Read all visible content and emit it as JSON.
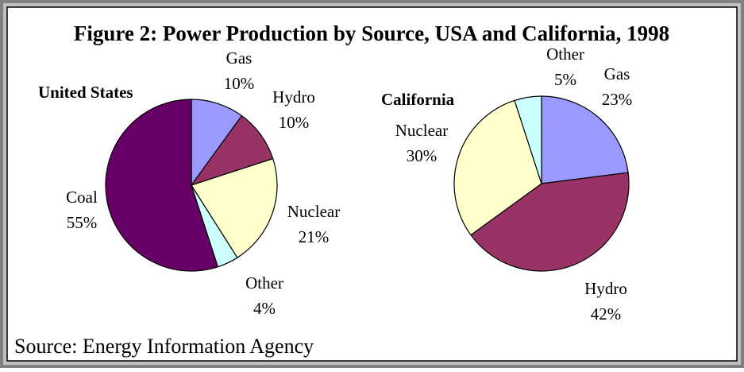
{
  "title": "Figure 2: Power Production by Source, USA and California, 1998",
  "source": "Source: Energy Information Agency",
  "chart_data": [
    {
      "type": "pie",
      "title": "United States",
      "categories": [
        "Gas",
        "Hydro",
        "Nuclear",
        "Other",
        "Coal"
      ],
      "values": [
        10,
        10,
        21,
        4,
        55
      ],
      "value_labels": [
        "10%",
        "10%",
        "21%",
        "4%",
        "55%"
      ],
      "colors": [
        "#9999ff",
        "#993366",
        "#ffffcc",
        "#ccffff",
        "#660066"
      ]
    },
    {
      "type": "pie",
      "title": "California",
      "categories": [
        "Gas",
        "Hydro",
        "Nuclear",
        "Other"
      ],
      "values": [
        23,
        42,
        30,
        5
      ],
      "value_labels": [
        "23%",
        "42%",
        "30%",
        "5%"
      ],
      "colors": [
        "#9999ff",
        "#993366",
        "#ffffcc",
        "#ccffff"
      ]
    }
  ]
}
